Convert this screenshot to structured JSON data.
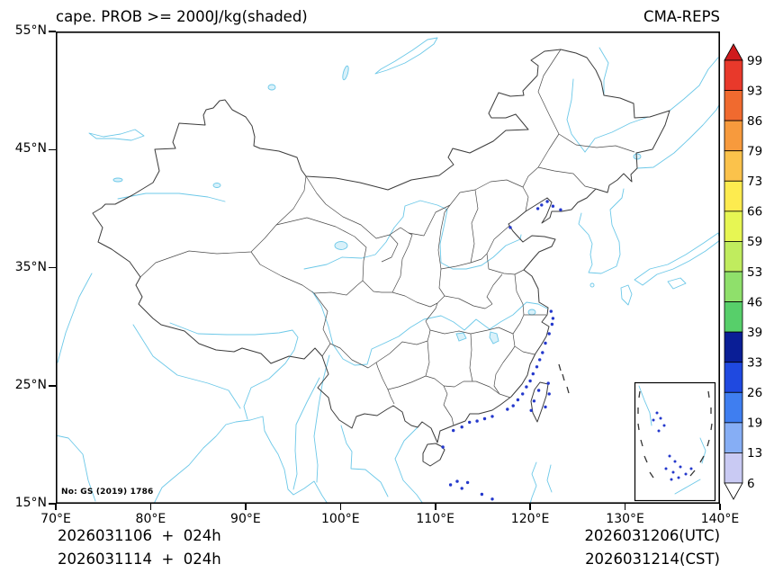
{
  "header": {
    "title": "cape. PROB >= 2000J/kg(shaded)",
    "model": "CMA-REPS"
  },
  "axes": {
    "x_ticks": [
      "70°E",
      "80°E",
      "90°E",
      "100°E",
      "110°E",
      "120°E",
      "130°E",
      "140°E"
    ],
    "x_values": [
      70,
      80,
      90,
      100,
      110,
      120,
      130,
      140
    ],
    "y_ticks": [
      "55°N",
      "45°N",
      "35°N",
      "25°N",
      "15°N"
    ],
    "y_values": [
      55,
      45,
      35,
      25,
      15
    ],
    "lon_range": [
      70,
      140
    ],
    "lat_range": [
      15,
      55
    ]
  },
  "colorbar": {
    "labels": [
      "99",
      "93",
      "86",
      "79",
      "73",
      "66",
      "59",
      "53",
      "46",
      "39",
      "33",
      "26",
      "19",
      "13",
      "6"
    ],
    "segment_colors_top_to_bottom": [
      "#e8392b",
      "#f06a2f",
      "#f79a3d",
      "#fbc24b",
      "#fdeb4f",
      "#e7f653",
      "#c0ec5e",
      "#8fe06b",
      "#57cf6a",
      "#0a1e96",
      "#1f49e0",
      "#3f7ef0",
      "#86aef5",
      "#c9caf3"
    ],
    "arrow_top_color": "#cf1b1d",
    "arrow_bottom_color": "#ffffff"
  },
  "map": {
    "note": "No: GS (2019) 1786",
    "line_colors": {
      "boundaries": "#3b3b3b",
      "water": "#6cc8e8",
      "shading_dot": "#2438cc"
    },
    "shading_points_lonlat": [
      [
        121.3,
        27.8
      ],
      [
        121.0,
        27.2
      ],
      [
        120.7,
        26.6
      ],
      [
        120.3,
        26.0
      ],
      [
        120.0,
        25.4
      ],
      [
        119.6,
        24.9
      ],
      [
        119.2,
        24.3
      ],
      [
        118.7,
        23.8
      ],
      [
        118.2,
        23.3
      ],
      [
        117.6,
        23.0
      ],
      [
        121.6,
        28.6
      ],
      [
        122.0,
        29.4
      ],
      [
        122.3,
        30.2
      ],
      [
        120.9,
        24.6
      ],
      [
        120.4,
        23.7
      ],
      [
        120.1,
        22.9
      ],
      [
        121.6,
        23.2
      ],
      [
        122.0,
        24.3
      ],
      [
        121.9,
        25.2
      ],
      [
        113.6,
        21.9
      ],
      [
        114.4,
        22.0
      ],
      [
        115.2,
        22.2
      ],
      [
        116.0,
        22.4
      ],
      [
        112.8,
        21.5
      ],
      [
        111.9,
        21.2
      ],
      [
        110.8,
        19.8
      ],
      [
        111.6,
        16.6
      ],
      [
        112.3,
        16.9
      ],
      [
        112.8,
        16.3
      ],
      [
        113.4,
        16.8
      ],
      [
        114.9,
        15.8
      ],
      [
        116.0,
        15.4
      ],
      [
        121.2,
        40.3
      ],
      [
        121.8,
        40.6
      ],
      [
        122.4,
        40.2
      ],
      [
        120.8,
        40.0
      ],
      [
        122.2,
        31.3
      ],
      [
        122.4,
        30.7
      ],
      [
        123.2,
        39.9
      ],
      [
        117.9,
        38.4
      ]
    ]
  },
  "forecast": {
    "init_plus_lead_utc": "2026031106  +  024h",
    "init_plus_lead_cst": "2026031114  +  024h",
    "valid_utc": "2026031206(UTC)",
    "valid_cst": "2026031214(CST)"
  }
}
